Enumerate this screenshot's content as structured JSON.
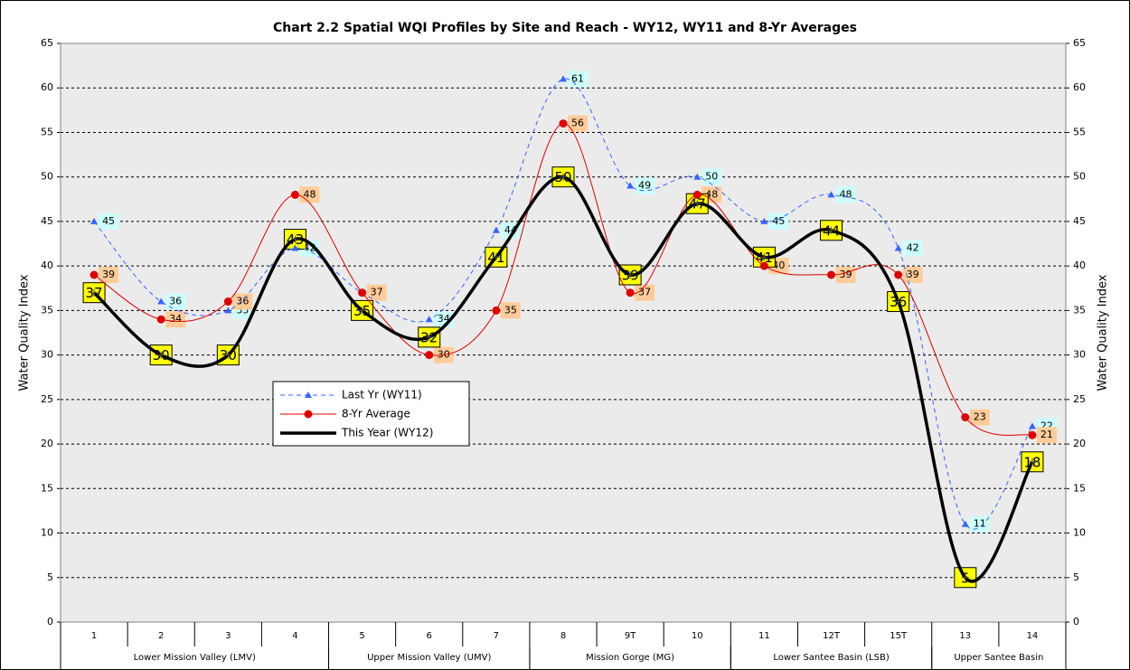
{
  "chart_data": {
    "type": "line",
    "title": "Chart 2.2 Spatial WQI Profiles by Site and Reach - WY12, WY11 and 8-Yr Averages",
    "y_label": "Water Quality Index",
    "y2_label": "Water Quality Index",
    "categories": [
      "1",
      "2",
      "3",
      "4",
      "5",
      "6",
      "7",
      "8",
      "9T",
      "10",
      "11",
      "12T",
      "15T",
      "13",
      "14"
    ],
    "groups": [
      {
        "name": "Lower Mission Valley (LMV)",
        "size": 4
      },
      {
        "name": "Upper Mission Valley (UMV)",
        "size": 3
      },
      {
        "name": "Mission Gorge (MG)",
        "size": 3
      },
      {
        "name": "Lower Santee Basin (LSB)",
        "size": 3
      },
      {
        "name": "Upper Santee Basin",
        "size": 2
      }
    ],
    "series": [
      {
        "name": "Last Yr (WY11)",
        "color": "#3366ff",
        "values": [
          45,
          36,
          35,
          42,
          37,
          34,
          44,
          61,
          49,
          50,
          45,
          48,
          42,
          11,
          22
        ]
      },
      {
        "name": "8-Yr Average",
        "color": "#e00000",
        "values": [
          39,
          34,
          36,
          48,
          37,
          30,
          35,
          56,
          37,
          48,
          40,
          39,
          39,
          23,
          21
        ]
      },
      {
        "name": "This Year (WY12)",
        "color": "#000000",
        "values": [
          37,
          30,
          30,
          43,
          35,
          32,
          41,
          50,
          39,
          47,
          41,
          44,
          36,
          5,
          18
        ]
      }
    ],
    "ylim": [
      0,
      65
    ],
    "yticks": [
      0,
      5,
      10,
      15,
      20,
      25,
      30,
      35,
      40,
      45,
      50,
      55,
      60,
      65
    ],
    "y2lim": [
      0,
      65
    ],
    "y2ticks": [
      0,
      5,
      10,
      15,
      20,
      25,
      30,
      35,
      40,
      45,
      50,
      55,
      60,
      65
    ],
    "grid": true,
    "legend": "center-left"
  }
}
